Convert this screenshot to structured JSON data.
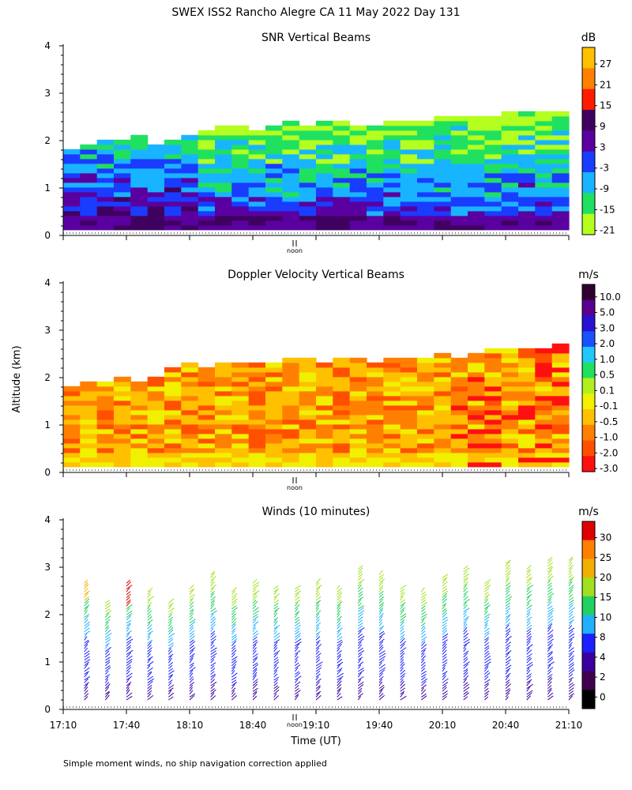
{
  "title": "SWEX ISS2 Rancho Alegre CA  11 May 2022 Day 131",
  "y_axis_label": "Altitude (km)",
  "x_axis_label": "Time (UT)",
  "footnote": "Simple moment winds, no ship navigation correction applied",
  "noon_label": "noon",
  "chart_data": [
    {
      "type": "heatmap",
      "title": "SNR Vertical Beams",
      "units": "dB",
      "ylim": [
        0,
        4
      ],
      "yticks": [
        "0",
        "1",
        "2",
        "3",
        "4"
      ],
      "colorbar_labels": [
        "27",
        "21",
        "15",
        "9",
        "3",
        "-3",
        "-9",
        "-15",
        "-21"
      ],
      "colorbar_colors": [
        "#ffc000",
        "#ff8000",
        "#ff1a00",
        "#400060",
        "#5a00a0",
        "#1a3cff",
        "#19b4ff",
        "#20e060",
        "#b4ff20"
      ],
      "echo_top_km": [
        1.8,
        1.9,
        1.95,
        2.0,
        2.05,
        1.9,
        2.0,
        2.1,
        2.2,
        2.3,
        2.25,
        2.2,
        2.3,
        2.35,
        2.3,
        2.4,
        2.35,
        2.3,
        2.3,
        2.35,
        2.4,
        2.4,
        2.45,
        2.5,
        2.5,
        2.5,
        2.55,
        2.6,
        2.55,
        2.6
      ],
      "notes": "Strong returns below 1 km, weaker returns 1-2.5 km"
    },
    {
      "type": "heatmap",
      "title": "Doppler Velocity Vertical Beams",
      "units": "m/s",
      "ylim": [
        0,
        4
      ],
      "yticks": [
        "0",
        "1",
        "2",
        "3",
        "4"
      ],
      "colorbar_labels": [
        "10.0",
        "5.0",
        "3.0",
        "2.0",
        "1.0",
        "0.5",
        "0.1",
        "-0.1",
        "-0.5",
        "-1.0",
        "-2.0",
        "-3.0"
      ],
      "colorbar_colors": [
        "#300030",
        "#5a0090",
        "#2a10d0",
        "#1a50ff",
        "#20c8ff",
        "#20e060",
        "#b0f020",
        "#f0f000",
        "#ffc000",
        "#ff8000",
        "#ff5000",
        "#ff1010"
      ],
      "echo_top_km": [
        1.8,
        1.9,
        1.9,
        1.95,
        1.9,
        2.0,
        2.2,
        2.3,
        2.2,
        2.25,
        2.3,
        2.3,
        2.3,
        2.35,
        2.35,
        2.3,
        2.4,
        2.35,
        2.3,
        2.35,
        2.35,
        2.4,
        2.45,
        2.4,
        2.5,
        2.55,
        2.55,
        2.6,
        2.6,
        2.65
      ],
      "notes": "Mostly weak downward motion (-0.1 to -1.0 m/s)"
    },
    {
      "type": "scatter",
      "title": "Winds (10 minutes)",
      "units": "m/s",
      "ylim": [
        0,
        4
      ],
      "yticks": [
        "0",
        "1",
        "2",
        "3",
        "4"
      ],
      "xlim": [
        "17:10",
        "21:10"
      ],
      "xticks": [
        "17:10",
        "17:40",
        "18:10",
        "18:40",
        "19:10",
        "19:40",
        "20:10",
        "20:40",
        "21:10"
      ],
      "colorbar_labels": [
        "30",
        "25",
        "20",
        "15",
        "10",
        "8",
        "4",
        "2",
        "0"
      ],
      "colorbar_colors": [
        "#e00000",
        "#ff8000",
        "#f0b000",
        "#a0e020",
        "#20d060",
        "#20b0ff",
        "#1a20ff",
        "#3a00a0",
        "#400050",
        "#000000"
      ],
      "profile_times_min_after_1710": [
        10,
        20,
        30,
        40,
        50,
        60,
        70,
        80,
        90,
        100,
        110,
        120,
        130,
        140,
        150,
        160,
        170,
        180,
        190,
        200,
        210,
        220,
        230,
        240
      ],
      "profile_tops_km": [
        2.7,
        2.3,
        2.7,
        2.5,
        2.3,
        2.6,
        2.9,
        2.5,
        2.7,
        2.6,
        2.6,
        2.7,
        2.6,
        3.0,
        2.9,
        2.6,
        2.5,
        2.8,
        3.0,
        2.7,
        3.1,
        3.0,
        3.15,
        3.2
      ]
    }
  ]
}
